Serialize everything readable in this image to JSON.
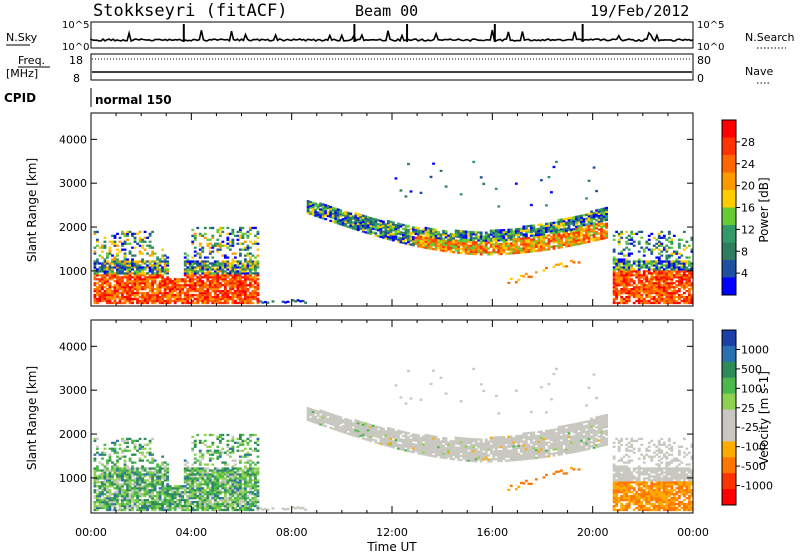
{
  "header": {
    "station": "Stokkseyri (fitACF)",
    "beam": "Beam 00",
    "date": "19/Feb/2012"
  },
  "strip_labels": {
    "nsky": "N.Sky",
    "nsky_top": "10^5",
    "nsky_bottom": "10^0",
    "nsearch": "N.Search",
    "nsearch_top": "10^5",
    "nsearch_bottom": "10^0",
    "freq": "Freq.",
    "freq_unit": "[MHz]",
    "freq_top": "18",
    "freq_bottom": "8",
    "nave": "Nave",
    "nave_top": "80",
    "nave_bottom": "0",
    "cpid": "CPID",
    "cpid_value": "normal 150"
  },
  "chart_data": [
    {
      "type": "heatmap",
      "name": "power",
      "ylabel": "Slant Range [km]",
      "xlabel": "",
      "yticks": [
        1000,
        2000,
        3000,
        4000
      ],
      "ylim": [
        200,
        4600
      ],
      "xticks": [
        "00:00",
        "04:00",
        "08:00",
        "12:00",
        "16:00",
        "20:00",
        "00:00"
      ],
      "colorbar": {
        "label": "Power [dB]",
        "ticks": [
          "28",
          "24",
          "20",
          "16",
          "12",
          "8",
          "4"
        ],
        "colors": [
          "#ff0000",
          "#ff3300",
          "#ff6600",
          "#ff9900",
          "#ffcc00",
          "#66cc33",
          "#339966",
          "#2e7d5e",
          "#1f4fa0",
          "#0000ff"
        ]
      }
    },
    {
      "type": "heatmap",
      "name": "velocity",
      "ylabel": "Slant Range [km]",
      "xlabel": "Time UT",
      "yticks": [
        1000,
        2000,
        3000,
        4000
      ],
      "ylim": [
        200,
        4600
      ],
      "xticks": [
        "00:00",
        "04:00",
        "08:00",
        "12:00",
        "16:00",
        "20:00",
        "00:00"
      ],
      "colorbar": {
        "label": "Velocity [m s-1]",
        "ticks": [
          "1000",
          "500",
          "100",
          "25",
          "-25",
          "-100",
          "-500",
          "-1000"
        ],
        "colors": [
          "#1c3fa8",
          "#2a6fb0",
          "#2e8b57",
          "#4bb84b",
          "#8fd14f",
          "#c8c8c0",
          "#c8c8c0",
          "#ffaa00",
          "#ff7700",
          "#ff3300",
          "#ff0000"
        ]
      }
    }
  ],
  "palette": {
    "axis": "#000000",
    "gray": "#c8c8c0"
  }
}
